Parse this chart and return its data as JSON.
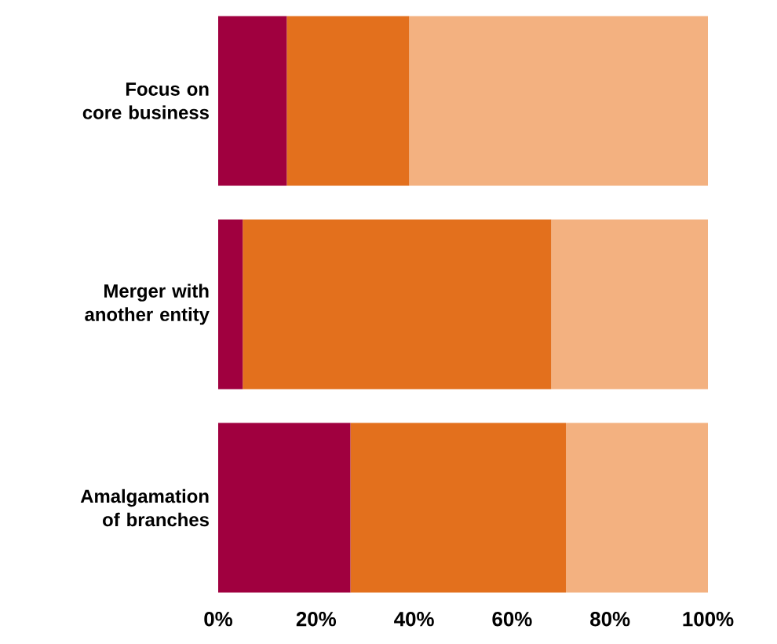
{
  "chart_data": {
    "type": "bar",
    "orientation": "horizontal",
    "stacked": true,
    "categories": [
      "Focus on core business",
      "Merger with another entity",
      "Amalgamation of branches"
    ],
    "series": [
      {
        "color": "#a0003f",
        "values": [
          14,
          5,
          27
        ]
      },
      {
        "color": "#e3701d",
        "values": [
          25,
          63,
          44
        ]
      },
      {
        "color": "#f3b180",
        "values": [
          61,
          32,
          29
        ]
      }
    ],
    "xlim": [
      0,
      100
    ],
    "xticks": [
      {
        "value": 0,
        "label": "0%"
      },
      {
        "value": 20,
        "label": "20%"
      },
      {
        "value": 40,
        "label": "40%"
      },
      {
        "value": 60,
        "label": "60%"
      },
      {
        "value": 80,
        "label": "80%"
      },
      {
        "value": 100,
        "label": "100%"
      }
    ]
  }
}
